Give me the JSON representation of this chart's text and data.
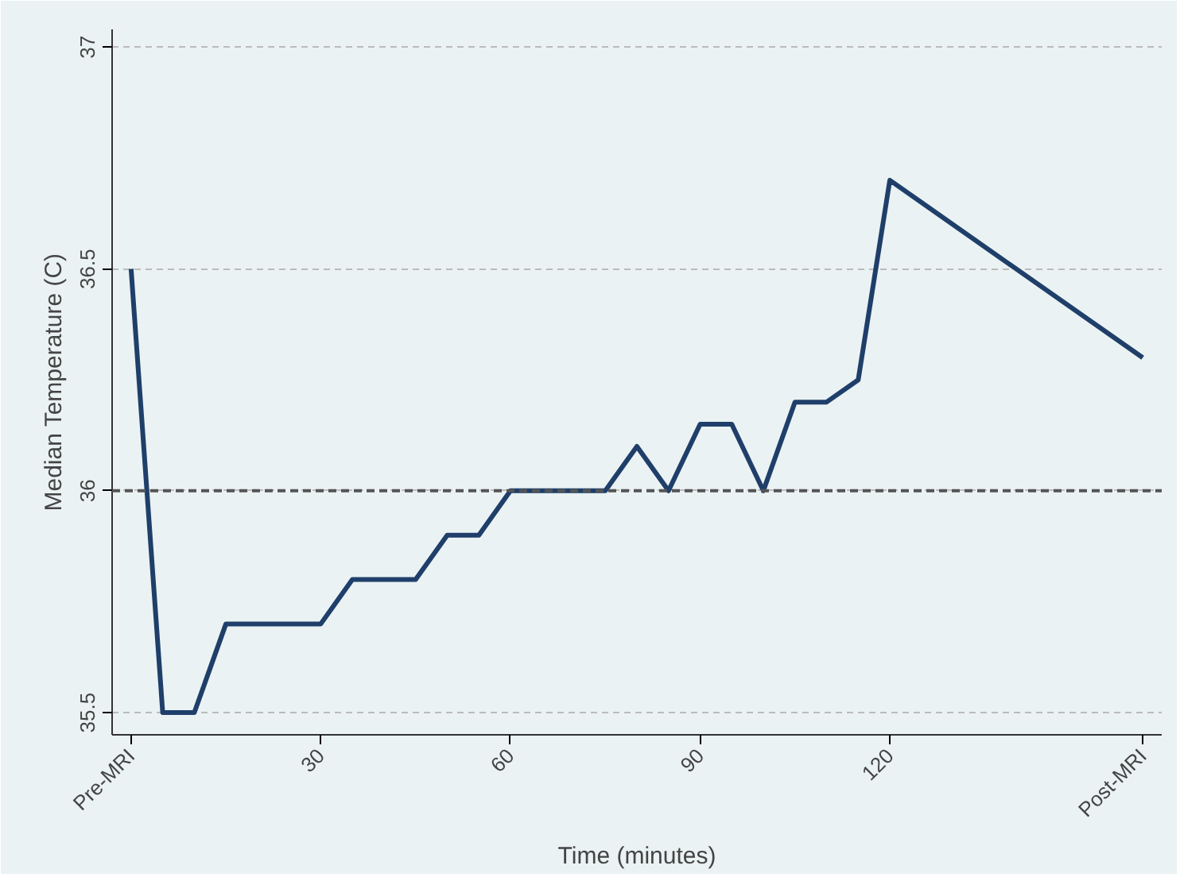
{
  "chart_data": {
    "type": "line",
    "xlabel": "Time (minutes)",
    "ylabel": "Median Temperature (C)",
    "x": [
      0,
      5,
      10,
      15,
      20,
      25,
      30,
      35,
      40,
      45,
      50,
      55,
      60,
      65,
      70,
      75,
      80,
      85,
      90,
      95,
      100,
      105,
      110,
      115,
      120,
      160
    ],
    "series": [
      {
        "color": "#1f3f6a",
        "values": [
          36.5,
          35.5,
          35.5,
          35.7,
          35.7,
          35.7,
          35.7,
          35.8,
          35.8,
          35.8,
          35.9,
          35.9,
          36,
          36,
          36,
          36,
          36.1,
          36,
          36.15,
          36.15,
          36,
          36.2,
          36.2,
          36.25,
          36.7,
          36.3
        ]
      }
    ],
    "xlim": [
      -3,
      163
    ],
    "ylim": [
      35.45,
      37.04
    ],
    "xticks": [
      {
        "value": 0,
        "label": "Pre-MRI"
      },
      30,
      60,
      90,
      120,
      {
        "value": 160,
        "label": "Post-MRI"
      }
    ],
    "yticks": [
      35.5,
      36,
      36.5,
      37
    ],
    "ref_lines": [
      {
        "axis": "y",
        "value": 36,
        "label": null,
        "color": "#555555",
        "line_style": "dashed"
      }
    ],
    "grid": "y",
    "marker": "none",
    "line_style": "solid"
  }
}
